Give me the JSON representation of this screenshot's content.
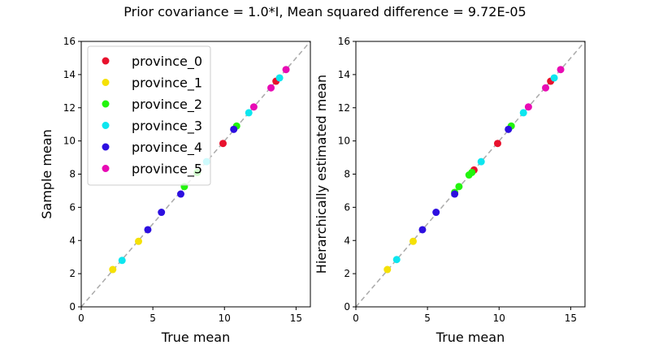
{
  "suptitle": "Prior covariance = 1.0*I, Mean squared difference = 9.72E-05",
  "colors": {
    "province_0": "#e8112d",
    "province_1": "#f5e106",
    "province_2": "#22f40d",
    "province_3": "#0de6ef",
    "province_4": "#2d0fe0",
    "province_5": "#e80bb4",
    "diagonal": "#aaaaaa"
  },
  "legend": {
    "placement": "top-left",
    "entries": [
      "province_0",
      "province_1",
      "province_2",
      "province_3",
      "province_4",
      "province_5"
    ]
  },
  "chart_data": [
    {
      "type": "scatter",
      "title": "",
      "xlabel": "True mean",
      "ylabel": "Sample mean",
      "xlim": [
        0,
        16
      ],
      "ylim": [
        0,
        16
      ],
      "xticks": [
        "0",
        "5",
        "10",
        "15"
      ],
      "yticks": [
        "0",
        "2",
        "4",
        "6",
        "8",
        "10",
        "12",
        "14",
        "16"
      ],
      "grid": false,
      "diagonal": true,
      "series": [
        {
          "name": "province_0",
          "x": [
            9.9,
            13.6
          ],
          "y": [
            9.85,
            13.6
          ]
        },
        {
          "name": "province_1",
          "x": [
            2.2,
            4.0
          ],
          "y": [
            2.25,
            3.95
          ]
        },
        {
          "name": "province_2",
          "x": [
            7.2,
            8.1,
            10.85
          ],
          "y": [
            7.25,
            8.1,
            10.9
          ]
        },
        {
          "name": "province_3",
          "x": [
            2.85,
            8.75,
            11.7,
            13.85
          ],
          "y": [
            2.8,
            8.75,
            11.7,
            13.8
          ]
        },
        {
          "name": "province_4",
          "x": [
            4.65,
            5.6,
            6.95,
            10.65
          ],
          "y": [
            4.65,
            5.7,
            6.8,
            10.7
          ]
        },
        {
          "name": "province_5",
          "x": [
            12.05,
            13.25,
            14.3
          ],
          "y": [
            12.05,
            13.2,
            14.3
          ]
        }
      ]
    },
    {
      "type": "scatter",
      "title": "",
      "xlabel": "True mean",
      "ylabel": "Hierarchically estimated mean",
      "xlim": [
        0,
        16
      ],
      "ylim": [
        0,
        16
      ],
      "xticks": [
        "0",
        "5",
        "10",
        "15"
      ],
      "yticks": [
        "0",
        "2",
        "4",
        "6",
        "8",
        "10",
        "12",
        "14",
        "16"
      ],
      "grid": false,
      "diagonal": true,
      "series": [
        {
          "name": "province_0",
          "x": [
            8.25,
            9.9,
            13.6
          ],
          "y": [
            8.25,
            9.85,
            13.6
          ]
        },
        {
          "name": "province_1",
          "x": [
            2.2,
            4.0
          ],
          "y": [
            2.25,
            3.95
          ]
        },
        {
          "name": "province_2",
          "x": [
            6.9,
            7.2,
            7.9,
            8.1,
            10.85
          ],
          "y": [
            6.9,
            7.25,
            7.95,
            8.1,
            10.9
          ]
        },
        {
          "name": "province_3",
          "x": [
            2.85,
            8.75,
            11.7,
            13.85
          ],
          "y": [
            2.85,
            8.75,
            11.7,
            13.8
          ]
        },
        {
          "name": "province_4",
          "x": [
            4.65,
            5.6,
            6.9,
            10.65
          ],
          "y": [
            4.65,
            5.7,
            6.8,
            10.7
          ]
        },
        {
          "name": "province_5",
          "x": [
            12.05,
            13.25,
            14.3
          ],
          "y": [
            12.05,
            13.2,
            14.3
          ]
        }
      ]
    }
  ]
}
